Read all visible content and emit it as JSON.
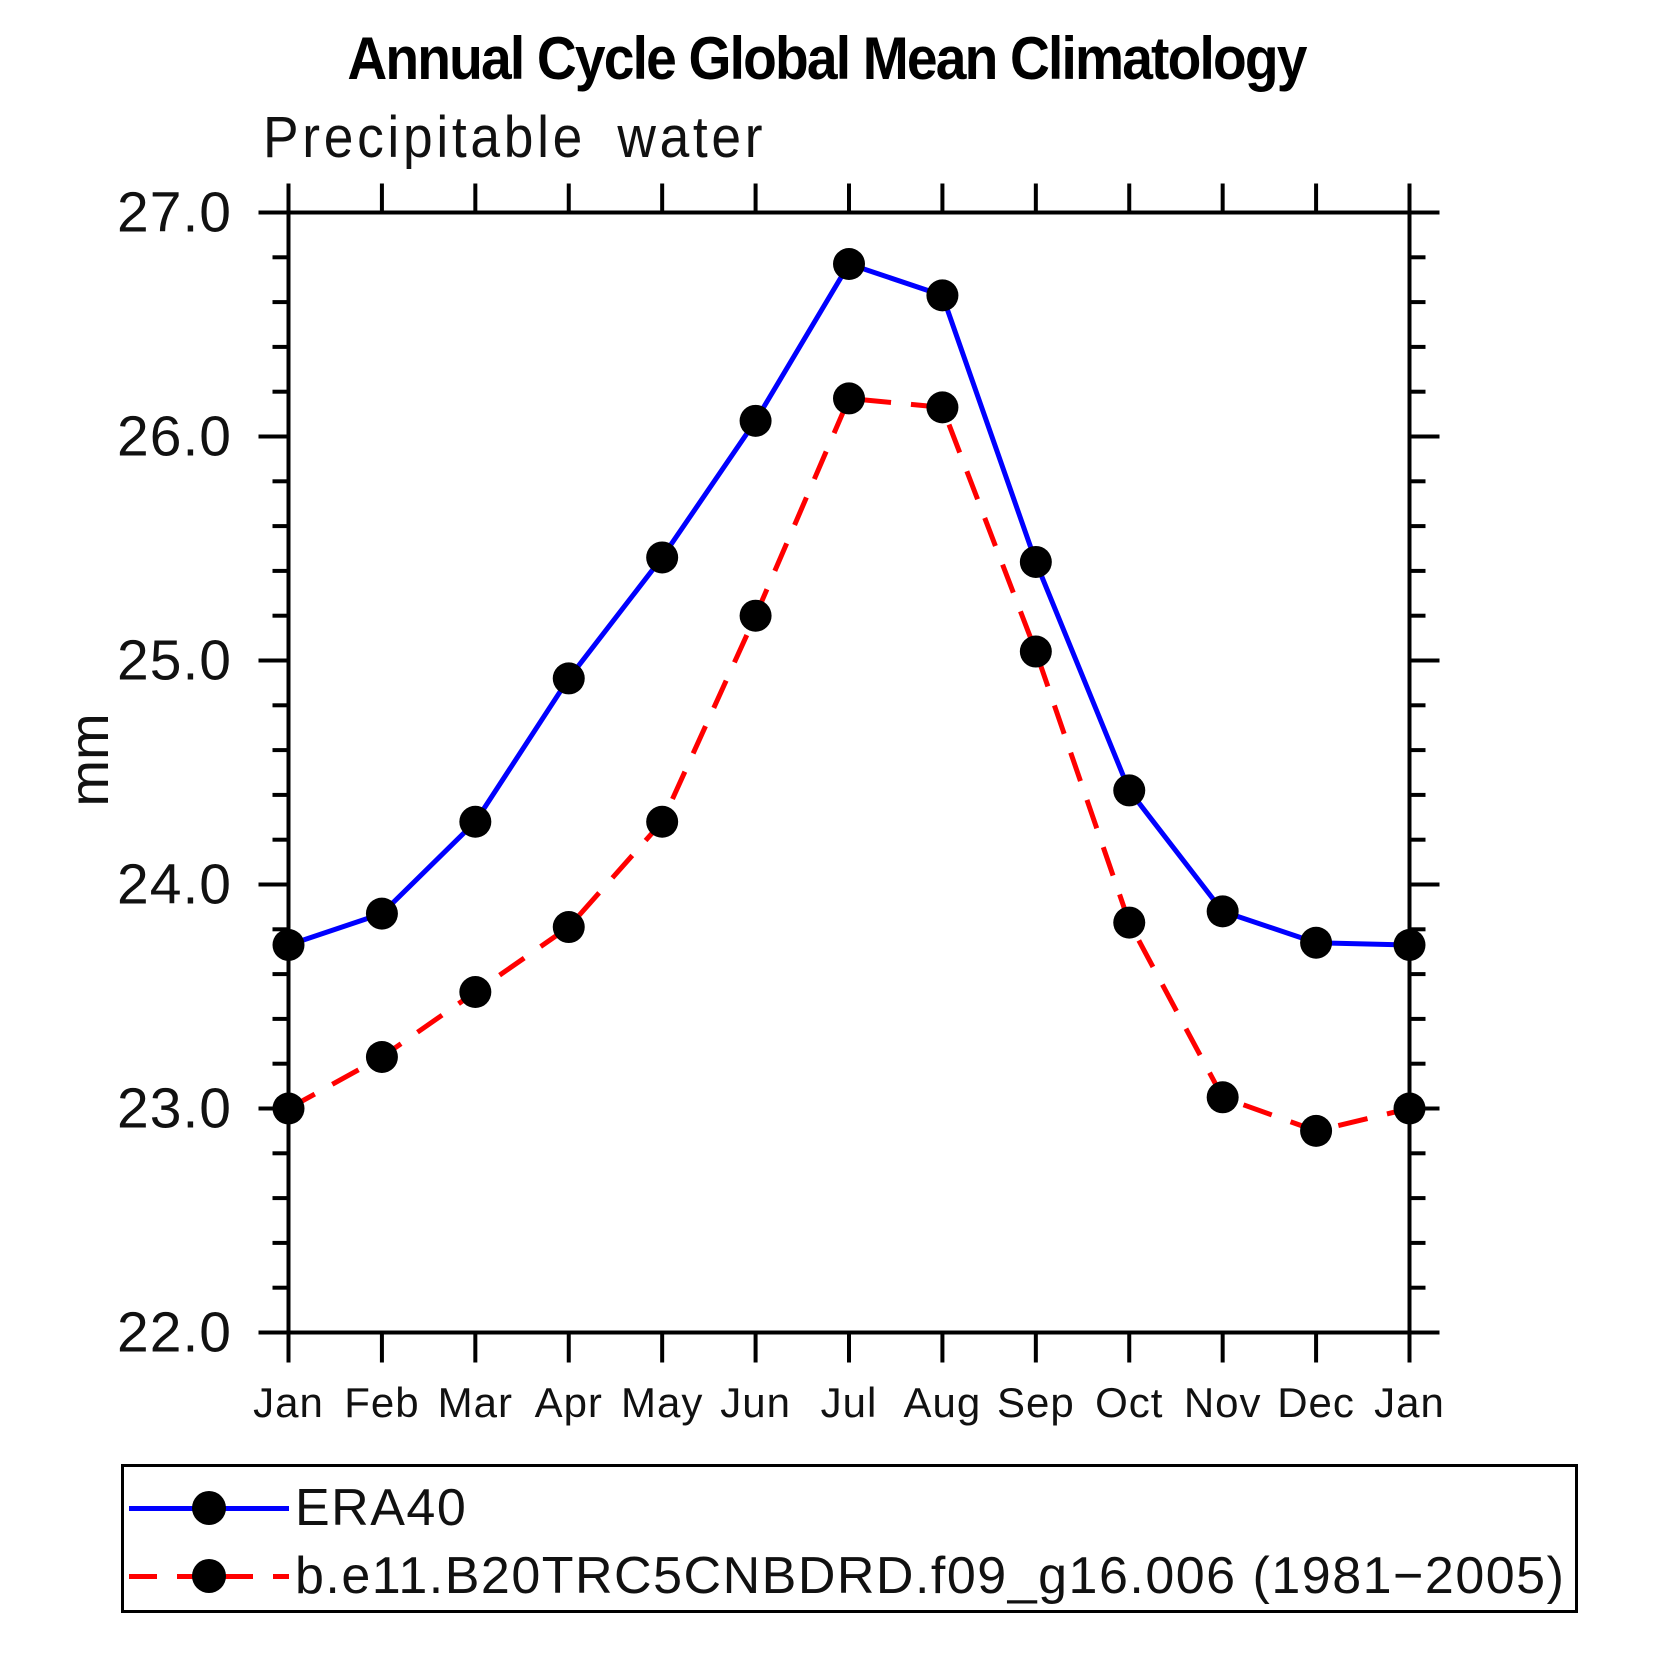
{
  "header": {
    "title": "Annual Cycle Global Mean Climatology",
    "subtitle": "Precipitable water"
  },
  "axes": {
    "y_unit_label": "mm",
    "y_tick_labels": [
      "27.0",
      "26.0",
      "25.0",
      "24.0",
      "23.0",
      "22.0"
    ],
    "x_tick_labels": [
      "Jan",
      "Feb",
      "Mar",
      "Apr",
      "May",
      "Jun",
      "Jul",
      "Aug",
      "Sep",
      "Oct",
      "Nov",
      "Dec",
      "Jan"
    ]
  },
  "colors": {
    "era40_line": "#0000ff",
    "model_line": "#ff0000",
    "marker": "#000000",
    "axis": "#000000"
  },
  "chart_data": {
    "type": "line",
    "title": "Annual Cycle Global Mean Climatology",
    "subtitle": "Precipitable water",
    "ylabel": "mm",
    "xlabel": "",
    "grid": false,
    "legend_position": "bottom",
    "ylim": [
      22.0,
      27.0
    ],
    "ytick_major_interval": 1.0,
    "ytick_minor_interval": 0.2,
    "x_categories": [
      "Jan",
      "Feb",
      "Mar",
      "Apr",
      "May",
      "Jun",
      "Jul",
      "Aug",
      "Sep",
      "Oct",
      "Nov",
      "Dec",
      "Jan"
    ],
    "series": [
      {
        "name": "ERA40",
        "color": "#0000ff",
        "line_style": "solid",
        "marker": "circle",
        "marker_color": "#000000",
        "values": [
          23.73,
          23.87,
          24.28,
          24.92,
          25.46,
          26.07,
          26.77,
          26.63,
          25.44,
          24.42,
          23.88,
          23.74,
          23.73
        ]
      },
      {
        "name": "b.e11.B20TRC5CNBDRD.f09_g16.006 (1981−2005)",
        "color": "#ff0000",
        "line_style": "dashed",
        "marker": "circle",
        "marker_color": "#000000",
        "values": [
          23.0,
          23.23,
          23.52,
          23.81,
          24.28,
          25.2,
          26.17,
          26.13,
          25.04,
          23.83,
          23.05,
          22.9,
          23.0
        ]
      }
    ]
  }
}
